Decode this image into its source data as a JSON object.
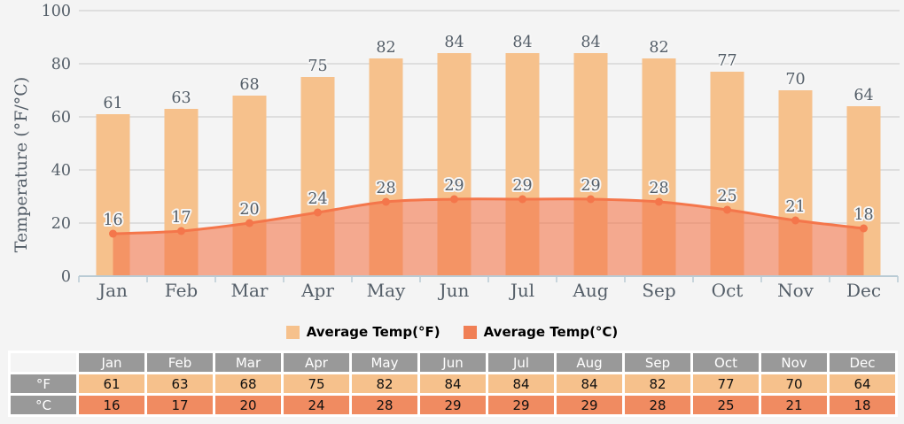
{
  "chart_data": {
    "type": "combo",
    "categories": [
      "Jan",
      "Feb",
      "Mar",
      "Apr",
      "May",
      "Jun",
      "Jul",
      "Aug",
      "Sep",
      "Oct",
      "Nov",
      "Dec"
    ],
    "series": [
      {
        "name": "Average Temp(°F)",
        "type": "bar",
        "values": [
          61,
          63,
          68,
          75,
          82,
          84,
          84,
          84,
          82,
          77,
          70,
          64
        ]
      },
      {
        "name": "Average Temp(°C)",
        "type": "area",
        "values": [
          16,
          17,
          20,
          24,
          28,
          29,
          29,
          29,
          28,
          25,
          21,
          18
        ]
      }
    ],
    "title": "",
    "xlabel": "",
    "ylabel": "Temperature (°F/°C)",
    "ylim": [
      0,
      100
    ],
    "yticks": [
      0,
      20,
      40,
      60,
      80,
      100
    ],
    "grid": true,
    "legend_position": "bottom"
  },
  "chart_style": {
    "background": "#F4F4F4",
    "bar_fill": "#F6C18C",
    "area_fill": "#F4764B",
    "area_fill_opacity": 0.6,
    "line_color": "#F4764B",
    "marker_color": "#F4764B",
    "grid_line": "#C8C8C8",
    "axis_line": "#B9CBD5",
    "label_text": "#545E68"
  },
  "legend": {
    "items": [
      {
        "label": "Average Temp(°F)",
        "color": "#F6C18C"
      },
      {
        "label": "Average Temp(°C)",
        "color": "#F07F55"
      }
    ]
  },
  "table": {
    "corner_label": "",
    "header_color": "#999999",
    "months": [
      "Jan",
      "Feb",
      "Mar",
      "Apr",
      "May",
      "Jun",
      "Jul",
      "Aug",
      "Sep",
      "Oct",
      "Nov",
      "Dec"
    ],
    "rows": [
      {
        "label": "°F",
        "label_color": "#999999",
        "cell_color": "#F6C18C",
        "values": [
          61,
          63,
          68,
          75,
          82,
          84,
          84,
          84,
          82,
          77,
          70,
          64
        ]
      },
      {
        "label": "°C",
        "label_color": "#999999",
        "cell_color": "#F08B61",
        "values": [
          16,
          17,
          20,
          24,
          28,
          29,
          29,
          29,
          28,
          25,
          21,
          18
        ]
      }
    ]
  }
}
